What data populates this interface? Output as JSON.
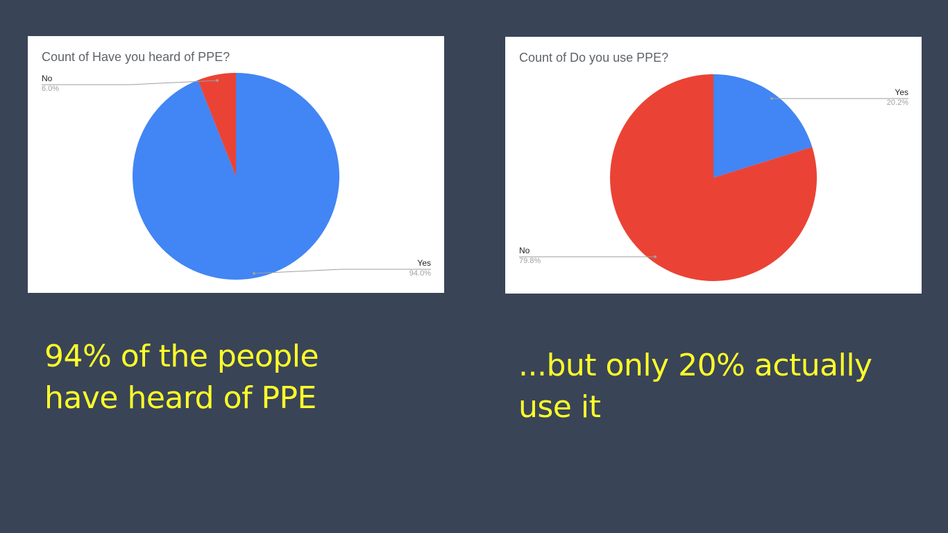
{
  "chart_data": [
    {
      "type": "pie",
      "title": "Count of Have you heard of PPE?",
      "slices": [
        {
          "label": "Yes",
          "value": 94.0,
          "pct_label": "94.0%",
          "color": "#4285f4"
        },
        {
          "label": "No",
          "value": 6.0,
          "pct_label": "6.0%",
          "color": "#ea4335"
        }
      ]
    },
    {
      "type": "pie",
      "title": "Count of Do you use PPE?",
      "slices": [
        {
          "label": "Yes",
          "value": 20.2,
          "pct_label": "20.2%",
          "color": "#4285f4"
        },
        {
          "label": "No",
          "value": 79.8,
          "pct_label": "79.8%",
          "color": "#ea4335"
        }
      ]
    }
  ],
  "captions": [
    {
      "line1": "94% of the people",
      "line2": "have heard of PPE"
    },
    {
      "line1": "...but only 20% actually",
      "line2": "use it"
    }
  ]
}
